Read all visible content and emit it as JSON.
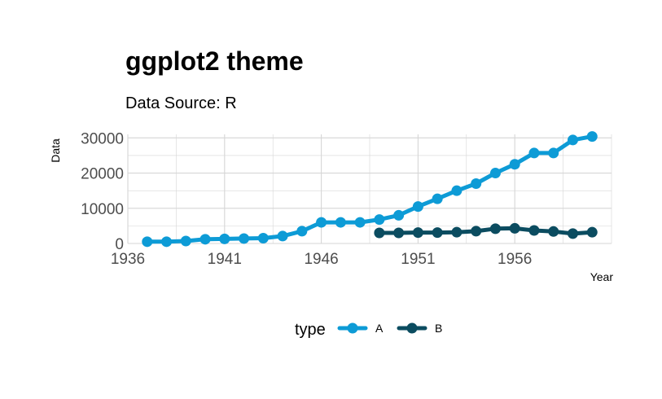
{
  "chart_data": {
    "type": "line",
    "title": "ggplot2 theme",
    "subtitle": "Data Source: R",
    "xlabel": "Year",
    "ylabel": "Data",
    "xlim": [
      1936,
      1961
    ],
    "ylim": [
      0,
      31000
    ],
    "x_ticks": [
      1936,
      1941,
      1946,
      1951,
      1956
    ],
    "y_ticks": [
      0,
      10000,
      20000,
      30000
    ],
    "grid": true,
    "legend_position": "bottom",
    "legend_title": "type",
    "series": [
      {
        "name": "A",
        "color": "#0d9bd6",
        "x": [
          1937,
          1938,
          1939,
          1940,
          1941,
          1942,
          1943,
          1944,
          1945,
          1946,
          1947,
          1948,
          1949,
          1950,
          1951,
          1952,
          1953,
          1954,
          1955,
          1956,
          1957,
          1958,
          1959,
          1960
        ],
        "values": [
          500,
          500,
          700,
          1200,
          1300,
          1400,
          1500,
          2100,
          3500,
          6000,
          6000,
          6000,
          6800,
          8000,
          10500,
          12700,
          15000,
          17000,
          20000,
          22500,
          25700,
          25700,
          29400,
          30400
        ]
      },
      {
        "name": "B",
        "color": "#0b4c60",
        "x": [
          1949,
          1950,
          1951,
          1952,
          1953,
          1954,
          1955,
          1956,
          1957,
          1958,
          1959,
          1960
        ],
        "values": [
          3000,
          3000,
          3100,
          3100,
          3200,
          3500,
          4200,
          4300,
          3700,
          3400,
          2800,
          3200
        ]
      }
    ]
  }
}
